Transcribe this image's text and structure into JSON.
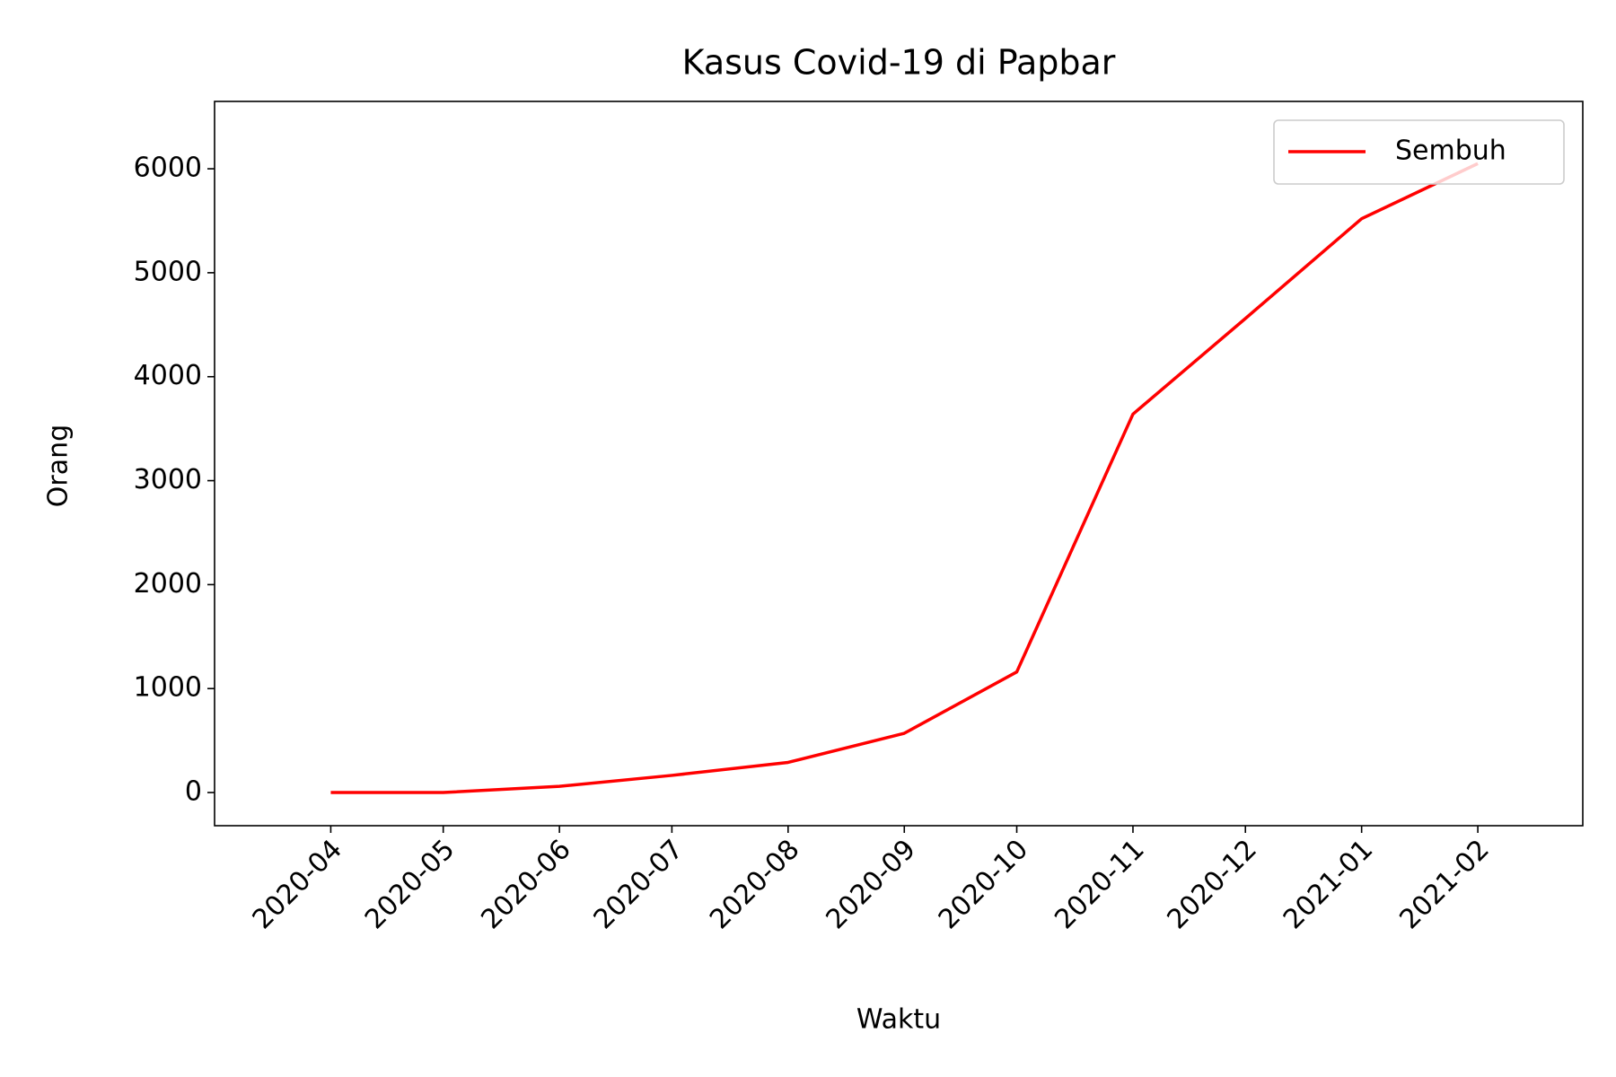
{
  "chart_data": {
    "type": "line",
    "title": "Kasus Covid-19 di Papbar",
    "xlabel": "Waktu",
    "ylabel": "Orang",
    "x": [
      "2020-04",
      "2020-05",
      "2020-06",
      "2020-07",
      "2020-08",
      "2020-09",
      "2020-10",
      "2020-11",
      "2020-12",
      "2021-01",
      "2021-02"
    ],
    "series": [
      {
        "name": "Sembuh",
        "color": "#ff0000",
        "values": [
          0,
          0,
          60,
          165,
          290,
          570,
          1160,
          3640,
          4560,
          5520,
          6050
        ]
      }
    ],
    "xlim": [
      "2020-03",
      "2021-03"
    ],
    "xticks": [
      "2020-04",
      "2020-05",
      "2020-06",
      "2020-07",
      "2020-08",
      "2020-09",
      "2020-10",
      "2020-11",
      "2020-12",
      "2021-01",
      "2021-02"
    ],
    "ylim": [
      -319,
      6648
    ],
    "yticks": [
      0,
      1000,
      2000,
      3000,
      4000,
      5000,
      6000
    ],
    "grid": false,
    "legend": "upper right"
  }
}
